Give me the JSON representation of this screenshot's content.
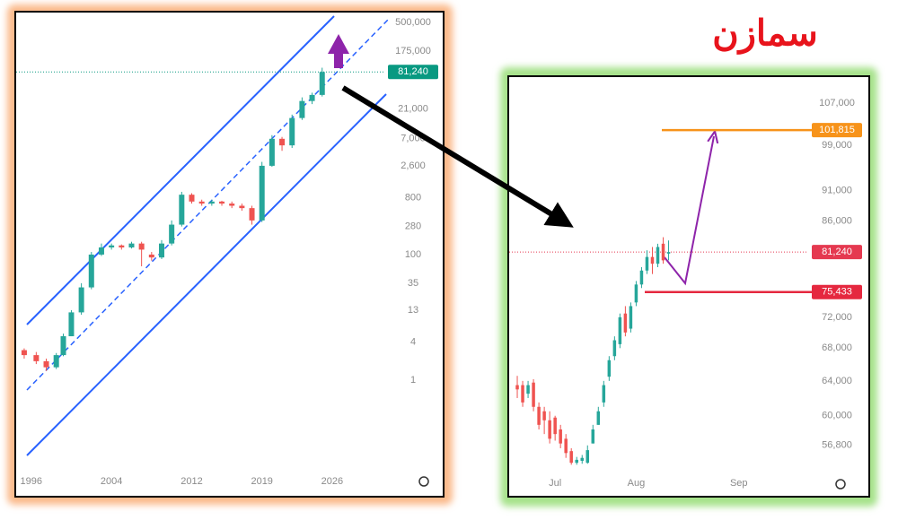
{
  "title": "سمازن",
  "chart_data": [
    {
      "type": "candlestick",
      "yscale": "log",
      "x": [
        1995.3,
        1996.5,
        1997.5,
        1998.5,
        1999.2,
        2000,
        2001,
        2002,
        2003,
        2004,
        2005,
        2006,
        2007,
        2008,
        2009,
        2010,
        2011,
        2012,
        2013,
        2014,
        2015,
        2016,
        2017,
        2018,
        2019,
        2020,
        2021,
        2022,
        2023,
        2024,
        2025
      ],
      "open": [
        3,
        2.5,
        2,
        1.6,
        2.5,
        5,
        12,
        30,
        100,
        130,
        140,
        130,
        150,
        100,
        90,
        150,
        300,
        900,
        700,
        650,
        700,
        650,
        600,
        550,
        350,
        2600,
        7000,
        5500,
        15000,
        28000,
        35000
      ],
      "high": [
        3.2,
        2.8,
        2.2,
        2.7,
        5.5,
        13,
        35,
        110,
        150,
        150,
        145,
        160,
        160,
        110,
        170,
        350,
        1000,
        950,
        750,
        750,
        720,
        700,
        650,
        600,
        3000,
        8000,
        7500,
        17000,
        32000,
        38000,
        95000
      ],
      "low": [
        2.2,
        1.8,
        1.4,
        1.5,
        2.4,
        5,
        11,
        28,
        95,
        120,
        120,
        125,
        65,
        80,
        85,
        140,
        280,
        650,
        600,
        600,
        600,
        550,
        500,
        300,
        330,
        2500,
        4500,
        5000,
        14000,
        25000,
        33000
      ],
      "close": [
        2.5,
        2,
        1.6,
        2.5,
        5,
        12,
        30,
        100,
        130,
        140,
        130,
        150,
        120,
        90,
        150,
        300,
        900,
        700,
        650,
        700,
        650,
        600,
        550,
        350,
        2600,
        7000,
        5500,
        15000,
        28000,
        35000,
        81240
      ],
      "xlim": [
        1994.5,
        2031.2
      ],
      "xticks": [
        1996,
        2004,
        2012,
        2019,
        2026
      ],
      "ylim": [
        0.036,
        719000
      ],
      "yticks": [
        {
          "value": 500000,
          "label": "500,000"
        },
        {
          "value": 175000,
          "label": "175,000"
        },
        {
          "value": 21000,
          "label": "21,000"
        },
        {
          "value": 7000,
          "label": "7,000"
        },
        {
          "value": 2600,
          "label": "2,600"
        },
        800,
        280,
        100,
        35,
        13,
        4,
        1
      ],
      "up_color": "#26a69a",
      "down_color": "#ef5350",
      "levels": [
        {
          "value": 81240,
          "label": "81,240",
          "color": "#089981",
          "style": "dotted"
        }
      ]
    },
    {
      "type": "candlestick",
      "yscale": "log",
      "categories": [
        null,
        null,
        null,
        null,
        null,
        null,
        null,
        null,
        "Jul",
        null,
        null,
        null,
        null,
        null,
        null,
        null,
        null,
        null,
        null,
        null,
        null,
        null,
        null,
        "Aug",
        null,
        null,
        null,
        null,
        null,
        null,
        null,
        null,
        null,
        null,
        null,
        null,
        null,
        null,
        null,
        null,
        null,
        null,
        "Sep",
        null,
        null,
        null,
        null,
        null,
        null,
        null,
        null,
        null,
        null,
        null,
        null
      ],
      "open": [
        null,
        63500,
        63500,
        62500,
        63800,
        61000,
        60500,
        59500,
        59800,
        58500,
        57500,
        56200,
        55000,
        55200,
        55000,
        57000,
        59000,
        61500,
        64500,
        67000,
        68500,
        72500,
        70500,
        74000,
        76500,
        78500,
        80500,
        79500,
        82500,
        81000,
        null,
        null,
        null,
        null,
        null,
        null,
        null,
        null,
        null,
        null,
        null,
        null,
        null,
        null,
        null,
        null,
        null,
        null,
        null,
        null,
        null,
        null,
        null,
        null,
        null
      ],
      "high": [
        null,
        64600,
        64000,
        64000,
        64200,
        61500,
        61000,
        60500,
        60000,
        59000,
        58000,
        56500,
        55600,
        55800,
        56800,
        59000,
        61000,
        64000,
        67000,
        69500,
        72500,
        73500,
        74000,
        77000,
        79000,
        81500,
        82000,
        82500,
        83500,
        83000,
        null,
        null,
        null,
        null,
        null,
        null,
        null,
        null,
        null,
        null,
        null,
        null,
        null,
        null,
        null,
        null,
        null,
        null,
        null,
        null,
        null,
        null,
        null,
        null,
        null
      ],
      "low": [
        null,
        62000,
        61000,
        62000,
        60500,
        58500,
        58000,
        57000,
        57300,
        56500,
        55500,
        54800,
        54800,
        54900,
        54900,
        57000,
        59000,
        61000,
        64000,
        66500,
        68000,
        69500,
        70000,
        73500,
        76000,
        78000,
        78000,
        79000,
        79500,
        80000,
        null,
        null,
        null,
        null,
        null,
        null,
        null,
        null,
        null,
        null,
        null,
        null,
        null,
        null,
        null,
        null,
        null,
        null,
        null,
        null,
        null,
        null,
        null,
        null,
        null
      ],
      "close": [
        null,
        63000,
        61500,
        63500,
        61000,
        59000,
        59500,
        57500,
        58000,
        57000,
        56000,
        55000,
        55300,
        55500,
        56300,
        58500,
        60500,
        63500,
        66500,
        69000,
        72000,
        70000,
        73500,
        76500,
        78500,
        80500,
        79500,
        82000,
        80000,
        81240,
        null,
        null,
        null,
        null,
        null,
        null,
        null,
        null,
        null,
        null,
        null,
        null,
        null,
        null,
        null,
        null,
        null,
        null,
        null,
        null,
        null,
        null,
        null,
        null,
        null
      ],
      "ylim": [
        54200,
        112300
      ],
      "yticks": [
        {
          "value": 107000,
          "label": "107,000"
        },
        {
          "value": 99000,
          "label": "99,000"
        },
        {
          "value": 91000,
          "label": "91,000"
        },
        {
          "value": 86000,
          "label": "86,000"
        },
        {
          "value": 72000,
          "label": "72,000"
        },
        {
          "value": 68000,
          "label": "68,000"
        },
        {
          "value": 64000,
          "label": "64,000"
        },
        {
          "value": 60000,
          "label": "60,000"
        },
        {
          "value": 56800,
          "label": "56,800"
        }
      ],
      "up_color": "#26a69a",
      "down_color": "#ef5350",
      "levels": [
        {
          "value": 101815,
          "label": "101,815",
          "color": "#f7931a",
          "style": "solid"
        },
        {
          "value": 81240,
          "label": "81,240",
          "color": "#e53950",
          "style": "dotted"
        },
        {
          "value": 75433,
          "label": "75,433",
          "color": "#e5283f",
          "style": "solid"
        }
      ]
    }
  ]
}
